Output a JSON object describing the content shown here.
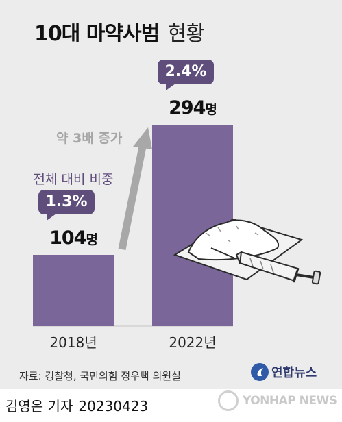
{
  "title": {
    "main": "10대 마약사범",
    "sub": "현황"
  },
  "chart_data": {
    "type": "bar",
    "title": "10대 마약사범 현황",
    "categories": [
      "2018년",
      "2022년"
    ],
    "values": [
      104,
      294
    ],
    "value_labels": [
      "104",
      "294"
    ],
    "unit": "명",
    "shares": [
      "1.3%",
      "2.4%"
    ],
    "share_label": "전체 대비 비중",
    "growth_annotation": "약 3배 증가",
    "ylim": [
      0,
      350
    ],
    "colors": {
      "bar": "#7a6698",
      "pill": "#5f4d7c",
      "arrow": "#a8a8a8"
    }
  },
  "footer": {
    "source": "자료: 경찰청, 국민의힘 정우택 의원실",
    "logo": "연합뉴스",
    "reporter": "김영은 기자",
    "date": "20230423",
    "watermark": "YONHAP NEWS"
  }
}
